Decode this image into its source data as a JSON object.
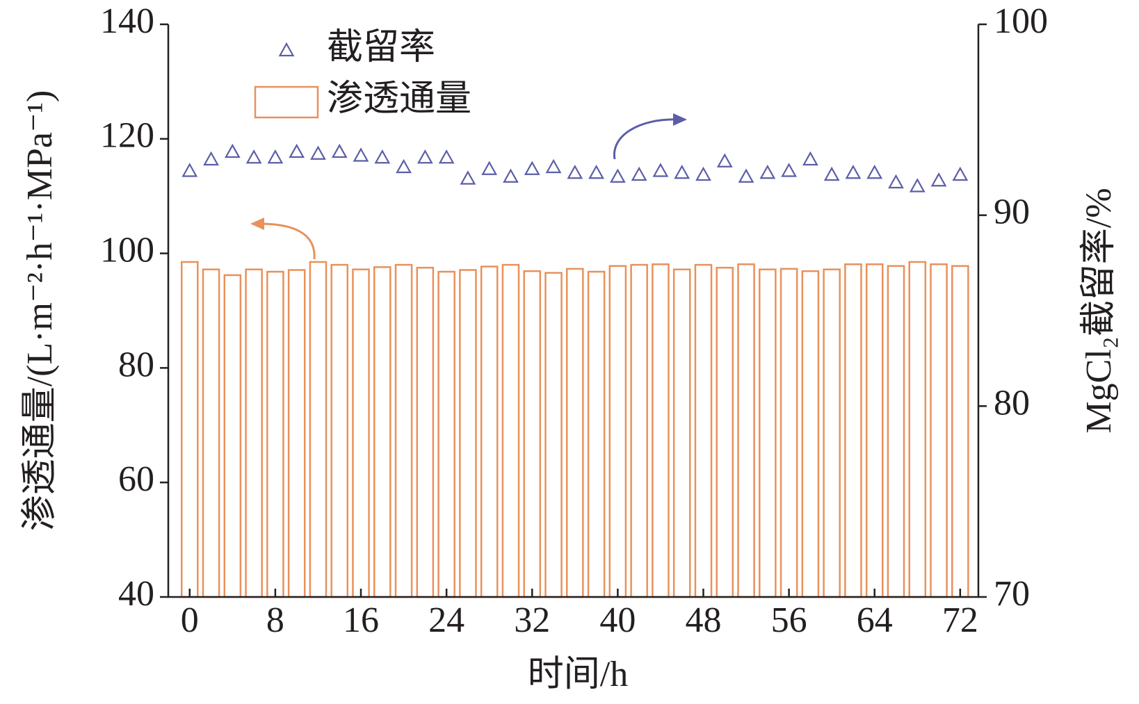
{
  "chart_data": {
    "type": "bar_scatter",
    "x_label": "时间/h",
    "y_label": "渗透通量/(L·m⁻²·h⁻¹·MPa⁻¹)",
    "y2_label": "MgCl₂截留率/%",
    "x": [
      0,
      2,
      4,
      6,
      8,
      10,
      12,
      14,
      16,
      18,
      20,
      22,
      24,
      26,
      28,
      30,
      32,
      34,
      36,
      38,
      40,
      42,
      44,
      46,
      48,
      50,
      52,
      54,
      56,
      58,
      60,
      62,
      64,
      66,
      68,
      70,
      72
    ],
    "xlim": [
      -2,
      73.7
    ],
    "xticks": [
      0,
      8,
      16,
      24,
      32,
      40,
      48,
      56,
      64,
      72
    ],
    "ylim": [
      40,
      140
    ],
    "yticks": [
      40,
      60,
      80,
      100,
      120,
      140
    ],
    "y2lim": [
      70,
      100
    ],
    "y2ticks": [
      70,
      80,
      90,
      100
    ],
    "legend": "upper left",
    "series": [
      {
        "name": "渗透通量",
        "kind": "bar",
        "axis": "y",
        "color": "#e8915b",
        "values": [
          98.5,
          97.2,
          96.2,
          97.2,
          96.8,
          97.1,
          98.5,
          98.0,
          97.2,
          97.6,
          98.0,
          97.5,
          96.8,
          97.1,
          97.7,
          98.0,
          96.9,
          96.6,
          97.3,
          96.8,
          97.8,
          98.0,
          98.1,
          97.2,
          98.0,
          97.5,
          98.1,
          97.2,
          97.3,
          96.9,
          97.2,
          98.1,
          98.1,
          97.8,
          98.5,
          98.1,
          97.8
        ]
      },
      {
        "name": "截留率",
        "kind": "triangle",
        "axis": "y2",
        "color": "#5b5ea6",
        "values": [
          92.3,
          92.9,
          93.3,
          93.0,
          93.0,
          93.3,
          93.2,
          93.3,
          93.1,
          93.0,
          92.5,
          93.0,
          93.0,
          91.9,
          92.4,
          92.0,
          92.4,
          92.5,
          92.2,
          92.2,
          92.0,
          92.1,
          92.3,
          92.2,
          92.1,
          92.8,
          92.0,
          92.2,
          92.3,
          92.9,
          92.1,
          92.2,
          92.2,
          91.7,
          91.5,
          91.8,
          92.1
        ]
      }
    ]
  }
}
